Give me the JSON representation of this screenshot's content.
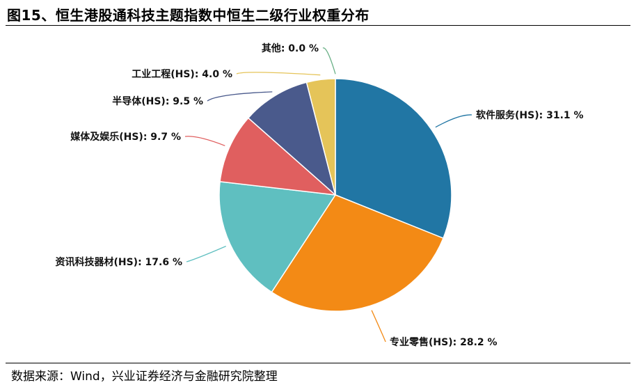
{
  "title": "图15、恒生港股通科技主题指数中恒生二级行业权重分布",
  "source": "数据来源：Wind，兴业证券经济与金融研究院整理",
  "chart_data": {
    "type": "pie",
    "slices": [
      {
        "label": "软件服务(HS)",
        "value": 31.1,
        "value_text": "31.1 %",
        "color": "#2176a4"
      },
      {
        "label": "专业零售(HS)",
        "value": 28.2,
        "value_text": "28.2 %",
        "color": "#f38a15"
      },
      {
        "label": "资讯科技器材(HS)",
        "value": 17.6,
        "value_text": "17.6 %",
        "color": "#5fbfc0"
      },
      {
        "label": "媒体及娱乐(HS)",
        "value": 9.7,
        "value_text": "9.7 %",
        "color": "#e05f5f"
      },
      {
        "label": "半导体(HS)",
        "value": 9.5,
        "value_text": "9.5 %",
        "color": "#4a5a8c"
      },
      {
        "label": "工业工程(HS)",
        "value": 4.0,
        "value_text": "4.0 %",
        "color": "#e5c459"
      },
      {
        "label": "其他",
        "value": 0.0,
        "value_text": "0.0 %",
        "color": "#6ab187"
      }
    ]
  }
}
